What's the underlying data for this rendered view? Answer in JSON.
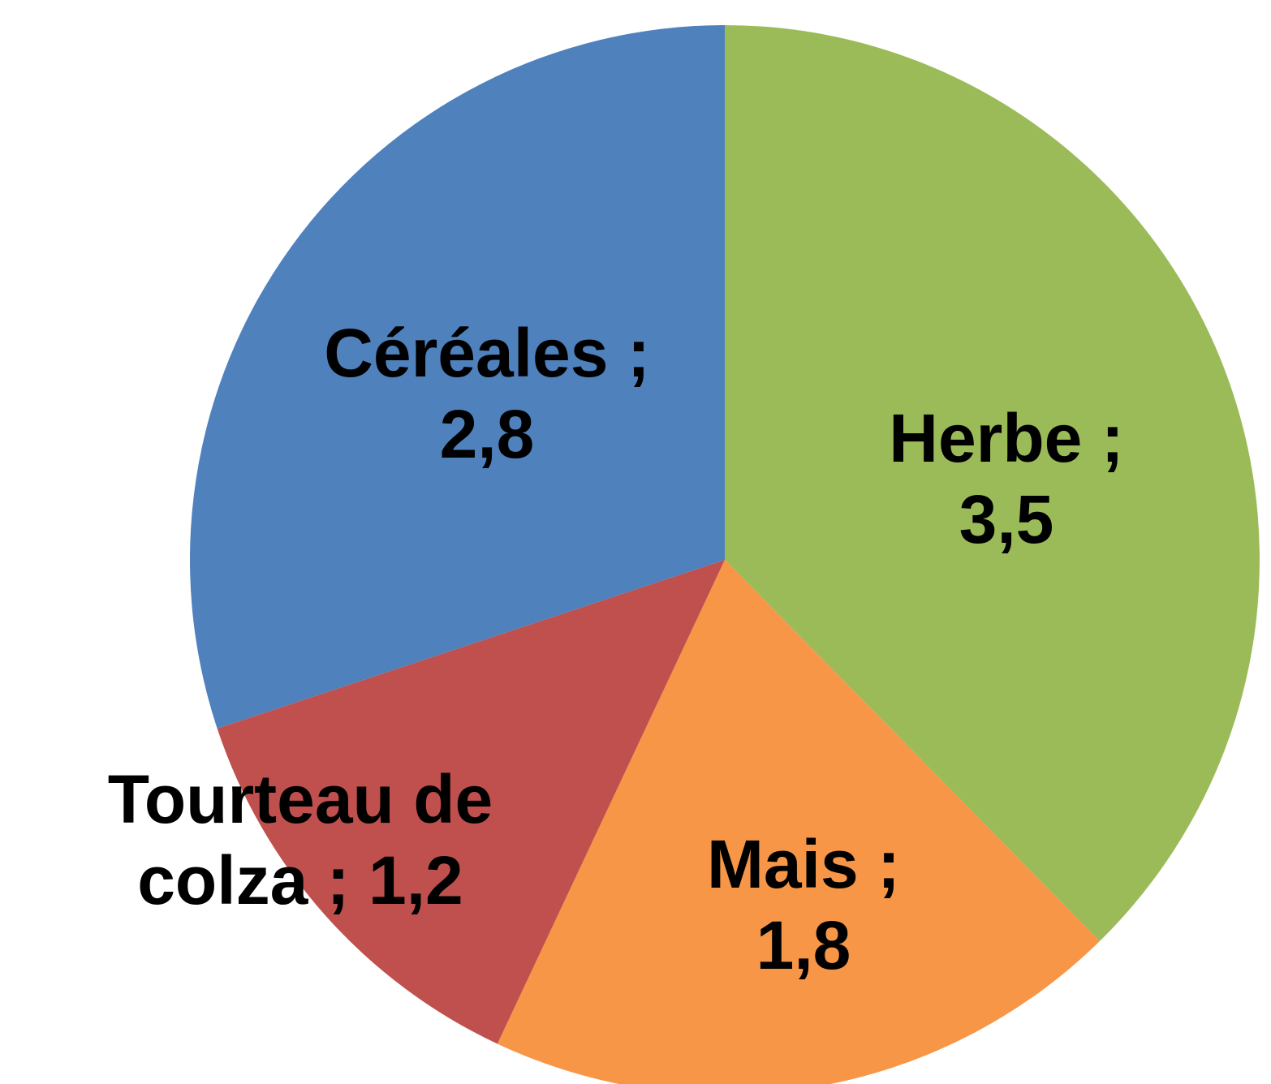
{
  "chart_data": {
    "type": "pie",
    "categories": [
      "Herbe",
      "Mais",
      "Tourteau de colza",
      "Céréales"
    ],
    "values": [
      3.5,
      1.8,
      1.2,
      2.8
    ],
    "value_labels": [
      "3,5",
      "1,8",
      "1,2",
      "2,8"
    ],
    "separator": ";",
    "colors": [
      "#9bbb59",
      "#f79646",
      "#c0504d",
      "#4f81bd"
    ]
  }
}
